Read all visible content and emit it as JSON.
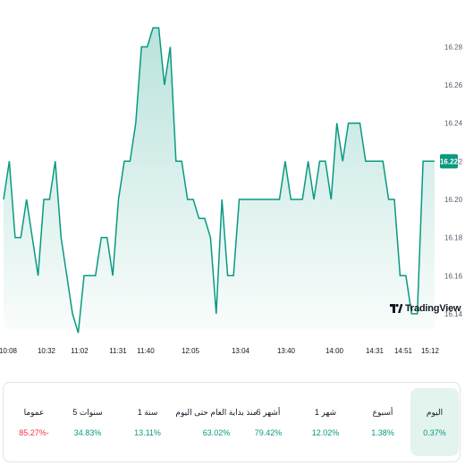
{
  "chart_data": {
    "type": "area",
    "x_ticks": [
      "10:08",
      "10:32",
      "11:02",
      "11:31",
      "11:40",
      "12:05",
      "13:04",
      "13:40",
      "14:00",
      "14:31",
      "14:51",
      "15:12"
    ],
    "y_ticks": [
      "16.14",
      "16.16",
      "16.18",
      "16.20",
      "16.22",
      "16.24",
      "16.26",
      "16.28"
    ],
    "ylim": [
      16.132,
      16.298
    ],
    "last_value": "16.22",
    "values": [
      16.2,
      16.22,
      16.18,
      16.18,
      16.2,
      16.18,
      16.16,
      16.2,
      16.2,
      16.22,
      16.18,
      16.16,
      16.14,
      16.13,
      16.16,
      16.16,
      16.16,
      16.18,
      16.18,
      16.16,
      16.2,
      16.22,
      16.22,
      16.24,
      16.28,
      16.28,
      16.29,
      16.29,
      16.26,
      16.28,
      16.22,
      16.22,
      16.2,
      16.2,
      16.19,
      16.19,
      16.18,
      16.14,
      16.2,
      16.16,
      16.16,
      16.2,
      16.2,
      16.2,
      16.2,
      16.2,
      16.2,
      16.2,
      16.2,
      16.22,
      16.2,
      16.2,
      16.2,
      16.22,
      16.2,
      16.22,
      16.22,
      16.2,
      16.24,
      16.22,
      16.24,
      16.24,
      16.24,
      16.22,
      16.22,
      16.22,
      16.22,
      16.2,
      16.2,
      16.16,
      16.16,
      16.14,
      16.14,
      16.22,
      16.22,
      16.22
    ],
    "line_color": "#089981",
    "fill_color": "#089981",
    "grid": false
  },
  "logo_text": "TradingView",
  "periods": [
    {
      "label": "اليوم",
      "value": "0.37%",
      "sign": "pos",
      "active": true
    },
    {
      "label": "أسبوع",
      "value": "1.38%",
      "sign": "pos",
      "active": false
    },
    {
      "label": "1 شهر",
      "value": "12.02%",
      "sign": "pos",
      "active": false
    },
    {
      "label": "6 أشهر",
      "value": "79.42%",
      "sign": "pos",
      "active": false
    },
    {
      "label": "منذ بداية العام حتى اليوم",
      "value": "63.02%",
      "sign": "pos",
      "active": false
    },
    {
      "label": "1 سنة",
      "value": "13.11%",
      "sign": "pos",
      "active": false
    },
    {
      "label": "5 سنوات",
      "value": "34.83%",
      "sign": "pos",
      "active": false
    },
    {
      "label": "عموما",
      "value": "85.27%-",
      "sign": "neg",
      "active": false
    }
  ]
}
